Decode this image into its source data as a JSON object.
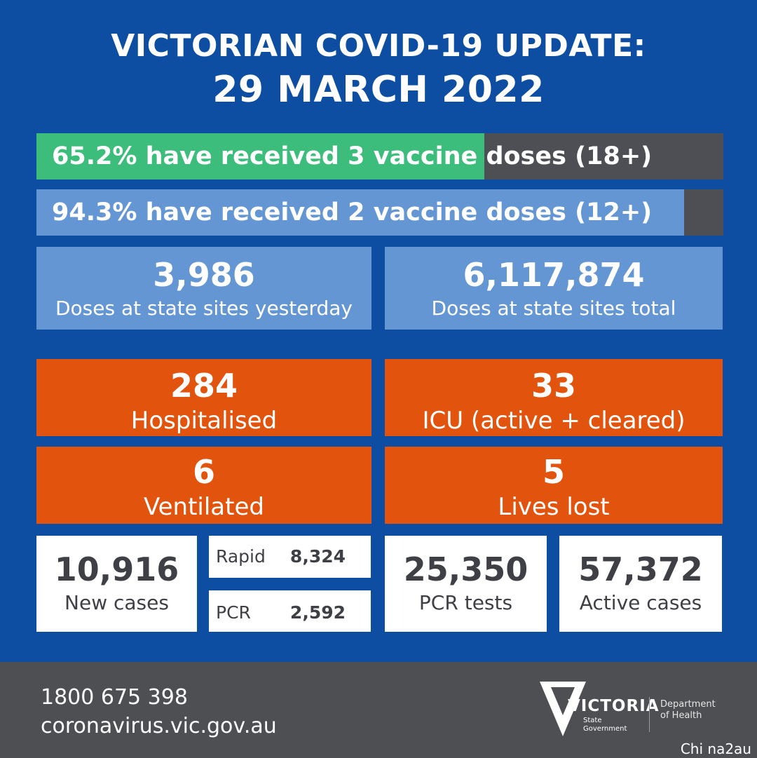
{
  "header": {
    "title": "VICTORIAN COVID-19 UPDATE:",
    "date": "29 MARCH 2022"
  },
  "vaccine_bars": [
    {
      "text": "65.2% have received 3 vaccine doses (18+)",
      "percent": 65.2,
      "fill_color": "#3dbd7b",
      "track_color": "#4d4f55"
    },
    {
      "text": "94.3% have received 2 vaccine doses (12+)",
      "percent": 94.3,
      "fill_color": "#6396d3",
      "track_color": "#4d4f55"
    }
  ],
  "doses": {
    "yesterday": {
      "value": "3,986",
      "label": "Doses at state sites yesterday"
    },
    "total": {
      "value": "6,117,874",
      "label": "Doses at state sites total"
    }
  },
  "hospital": {
    "hospitalised": {
      "value": "284",
      "label": "Hospitalised"
    },
    "icu": {
      "value": "33",
      "label": "ICU (active + cleared)"
    },
    "ventilated": {
      "value": "6",
      "label": "Ventilated"
    },
    "lives_lost": {
      "value": "5",
      "label": "Lives lost"
    }
  },
  "cases": {
    "new_cases": {
      "value": "10,916",
      "label": "New cases"
    },
    "rapid": {
      "label": "Rapid",
      "value": "8,324"
    },
    "pcr": {
      "label": "PCR",
      "value": "2,592"
    },
    "pcr_tests": {
      "value": "25,350",
      "label": "PCR tests"
    },
    "active_cases": {
      "value": "57,372",
      "label": "Active cases"
    }
  },
  "footer": {
    "phone": "1800 675 398",
    "website": "coronavirus.vic.gov.au",
    "logo_word": "VICTORIA",
    "logo_sub_1": "State",
    "logo_sub_2": "Government",
    "department_1": "Department",
    "department_2": "of Health"
  },
  "watermark": "Chi na2au",
  "colors": {
    "background": "#0d4ea2",
    "orange": "#e2540e",
    "light_blue": "#6396d3",
    "green": "#3dbd7b",
    "footer_grey": "#4e4f53"
  }
}
